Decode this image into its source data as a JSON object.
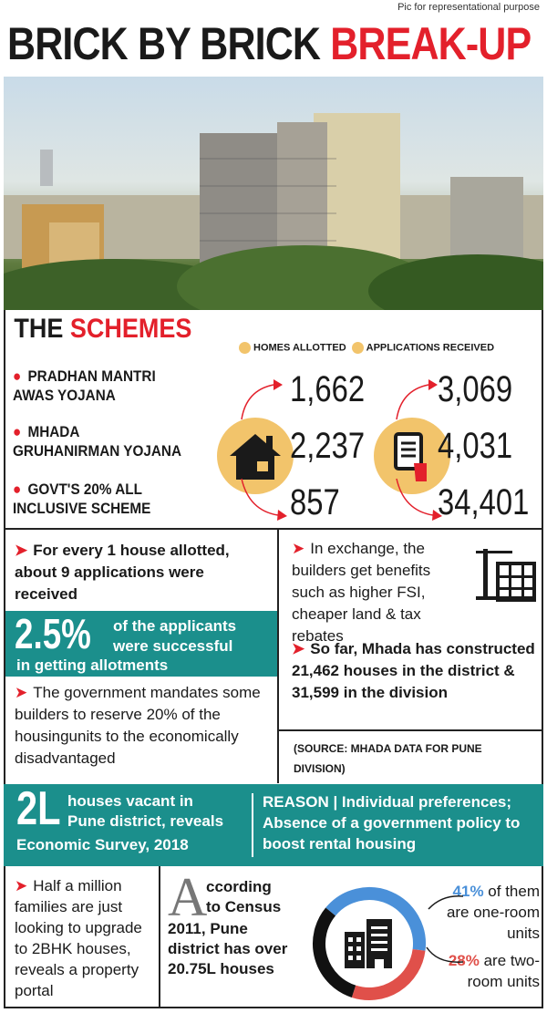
{
  "credit": "Pic for representational purpose",
  "title": {
    "part1": "BRICK BY BRICK",
    "part2": "BREAK-UP"
  },
  "schemes": {
    "title_part1": "THE",
    "title_part2": "SCHEMES",
    "legend": {
      "homes": "HOMES ALLOTTED",
      "applications": "APPLICATIONS RECEIVED"
    },
    "icons": {
      "homes": "house-icon",
      "applications": "document-hand-icon"
    },
    "rows": [
      {
        "line1": "PRADHAN MANTRI",
        "line2": "AWAS YOJANA",
        "homes": "1,662",
        "applications": "3,069"
      },
      {
        "line1": "MHADA",
        "line2": "GRUHANIRMAN YOJANA",
        "homes": "2,237",
        "applications": "4,031"
      },
      {
        "line1": "GOVT'S 20% ALL",
        "line2": "INCLUSIVE SCHEME",
        "homes": "857",
        "applications": "34,401"
      }
    ]
  },
  "facts": {
    "ratio": "For every 1 house allotted, about 9 applications were received",
    "success_pct": "2.5%",
    "success_text1": "of the applicants",
    "success_text2": "were successful",
    "success_text3": "in getting allotments",
    "mandate": "The government mandates some builders to reserve 20% of the housingunits to the economically disadvantaged",
    "exchange": "In exchange, the builders get benefits such as higher FSI, cheaper land & tax rebates",
    "constructed": "So far, Mhada has constructed 21,462 houses in the district & 31,599 in the division",
    "source": "(SOURCE: MHADA DATA FOR PUNE DIVISION)"
  },
  "vacant": {
    "big": "2L",
    "line1": "houses vacant in",
    "line2": "Pune district, reveals",
    "line3": "Economic Survey, 2018",
    "reason": "REASON | Individual preferences; Absence of a government policy to boost rental housing"
  },
  "bottom": {
    "families": "Half a million families are just looking to upgrade to 2BHK houses, reveals a property portal",
    "census_dropcap": "A",
    "census_rest1": "ccording",
    "census_rest2": "to Census",
    "census_rest3": "2011, Pune district has over 20.75L houses",
    "one_room_pct": "41%",
    "one_room_text": "of them are one-room units",
    "two_room_pct": "28%",
    "two_room_text": "are two-room units"
  },
  "chart_data": {
    "type": "pie",
    "categories": [
      "one-room units",
      "two-room units",
      "other"
    ],
    "values": [
      41,
      28,
      31
    ],
    "colors": [
      "#4a90d9",
      "#e0504a",
      "#111111"
    ]
  },
  "colors": {
    "accent_red": "#e3202b",
    "teal": "#1b8f8c",
    "icon_circle": "#f2c46b"
  }
}
